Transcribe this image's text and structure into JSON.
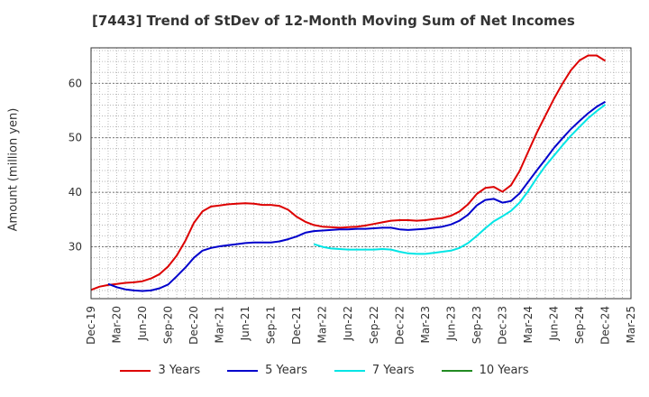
{
  "chart_data": {
    "type": "line",
    "title": "[7443]  Trend of StDev of 12-Month Moving Sum of Net Incomes",
    "xlabel": "",
    "ylabel": "Amount (million yen)",
    "x_tick_labels": [
      "Dec-19",
      "Mar-20",
      "Jun-20",
      "Sep-20",
      "Dec-20",
      "Mar-21",
      "Jun-21",
      "Sep-21",
      "Dec-21",
      "Mar-22",
      "Jun-22",
      "Sep-22",
      "Dec-22",
      "Mar-23",
      "Jun-23",
      "Sep-23",
      "Dec-23",
      "Mar-24",
      "Jun-24",
      "Sep-24",
      "Dec-24",
      "Mar-25"
    ],
    "y_ticks": [
      30,
      40,
      50,
      60
    ],
    "ylim": [
      20.5,
      66.5
    ],
    "grid": true,
    "legend_position": "bottom",
    "series": [
      {
        "name": "3 Years",
        "color": "#dd0000",
        "start_index": 0,
        "values": [
          22.1,
          22.7,
          23.0,
          23.2,
          23.4,
          23.5,
          23.7,
          24.2,
          25.0,
          26.4,
          28.4,
          31.1,
          34.4,
          36.5,
          37.4,
          37.6,
          37.8,
          37.9,
          38.0,
          37.9,
          37.7,
          37.7,
          37.5,
          36.8,
          35.5,
          34.6,
          34.0,
          33.7,
          33.6,
          33.5,
          33.6,
          33.7,
          33.9,
          34.2,
          34.5,
          34.8,
          34.9,
          34.9,
          34.8,
          34.9,
          35.1,
          35.3,
          35.7,
          36.5,
          37.8,
          39.7,
          40.8,
          41.0,
          40.1,
          41.3,
          43.9,
          47.4,
          50.9,
          54.0,
          57.1,
          59.9,
          62.4,
          64.2,
          65.1,
          65.1,
          64.1
        ]
      },
      {
        "name": "5 Years",
        "color": "#0000cc",
        "start_index": 2,
        "values": [
          23.2,
          22.6,
          22.2,
          22.0,
          21.9,
          22.0,
          22.4,
          23.1,
          24.6,
          26.2,
          28.0,
          29.3,
          29.8,
          30.1,
          30.3,
          30.5,
          30.7,
          30.8,
          30.8,
          30.8,
          31.0,
          31.4,
          31.9,
          32.6,
          32.9,
          33.0,
          33.1,
          33.2,
          33.2,
          33.3,
          33.3,
          33.4,
          33.5,
          33.5,
          33.2,
          33.1,
          33.2,
          33.3,
          33.5,
          33.7,
          34.1,
          34.8,
          35.9,
          37.6,
          38.6,
          38.8,
          38.1,
          38.4,
          39.8,
          41.9,
          44.0,
          46.0,
          48.1,
          49.9,
          51.6,
          53.1,
          54.5,
          55.7,
          56.6
        ]
      },
      {
        "name": "7 Years",
        "color": "#00e5e5",
        "start_index": 26,
        "values": [
          30.5,
          30.0,
          29.7,
          29.6,
          29.5,
          29.5,
          29.5,
          29.5,
          29.6,
          29.5,
          29.1,
          28.8,
          28.7,
          28.7,
          28.9,
          29.1,
          29.3,
          29.8,
          30.7,
          32.0,
          33.4,
          34.7,
          35.6,
          36.6,
          38.1,
          40.2,
          42.6,
          44.8,
          46.7,
          48.6,
          50.4,
          52.0,
          53.6,
          54.9,
          56.1
        ]
      },
      {
        "name": "10 Years",
        "color": "#228b22",
        "start_index": 0,
        "values": []
      }
    ]
  }
}
